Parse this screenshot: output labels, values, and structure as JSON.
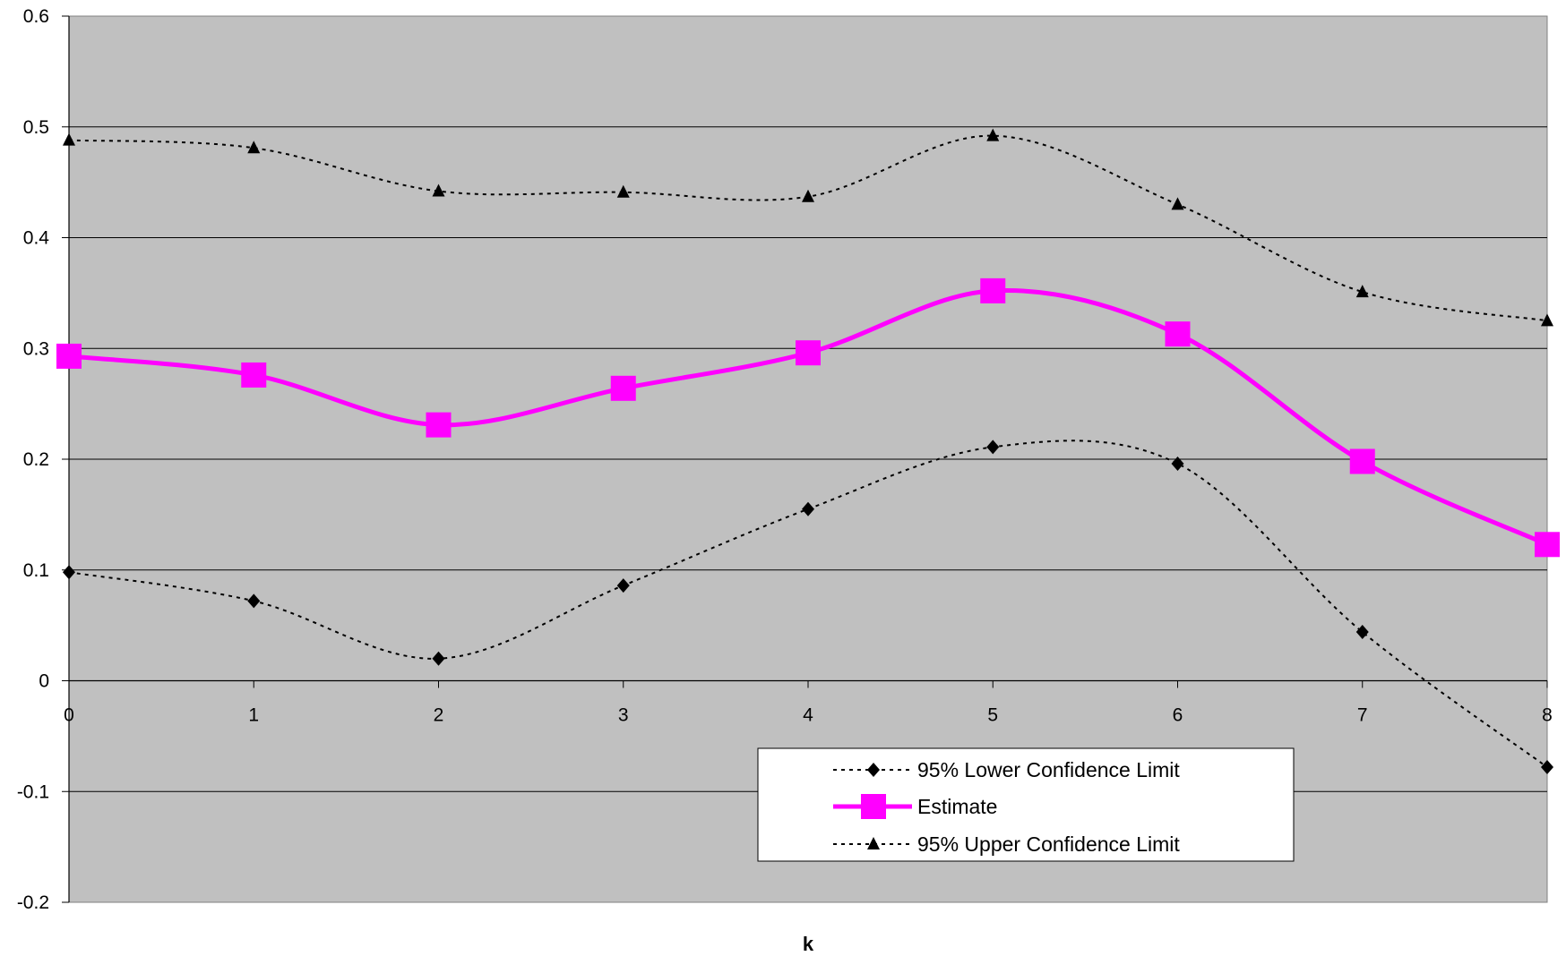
{
  "chart_data": {
    "type": "line",
    "title": "",
    "xlabel": "k",
    "ylabel": "",
    "x": [
      0,
      1,
      2,
      3,
      4,
      5,
      6,
      7,
      8
    ],
    "xlim": [
      0,
      8
    ],
    "ylim": [
      -0.2,
      0.6
    ],
    "yticks": [
      -0.2,
      -0.1,
      0,
      0.1,
      0.2,
      0.3,
      0.4,
      0.5,
      0.6
    ],
    "yticklabels": [
      "-0.2",
      "-0.1",
      "0",
      "0.1",
      "0.2",
      "0.3",
      "0.4",
      "0.5",
      "0.6"
    ],
    "xticklabels": [
      "0",
      "1",
      "2",
      "3",
      "4",
      "5",
      "6",
      "7",
      "8"
    ],
    "grid": "horizontal",
    "plot_background": "#c0c0c0",
    "smoothed": true,
    "legend_position": "bottom-center",
    "series": [
      {
        "name": "95% Lower Confidence Limit",
        "values": [
          0.098,
          0.072,
          0.02,
          0.086,
          0.155,
          0.211,
          0.196,
          0.044,
          -0.078
        ],
        "color": "#000000",
        "line_style": "dotted",
        "marker": "diamond"
      },
      {
        "name": "Estimate",
        "values": [
          0.293,
          0.276,
          0.231,
          0.264,
          0.296,
          0.352,
          0.313,
          0.198,
          0.123
        ],
        "color": "#ff00ff",
        "line_style": "solid",
        "marker": "square"
      },
      {
        "name": "95% Upper Confidence Limit",
        "values": [
          0.488,
          0.481,
          0.442,
          0.441,
          0.437,
          0.492,
          0.43,
          0.351,
          0.325
        ],
        "color": "#000000",
        "line_style": "dotted",
        "marker": "triangle"
      }
    ]
  }
}
